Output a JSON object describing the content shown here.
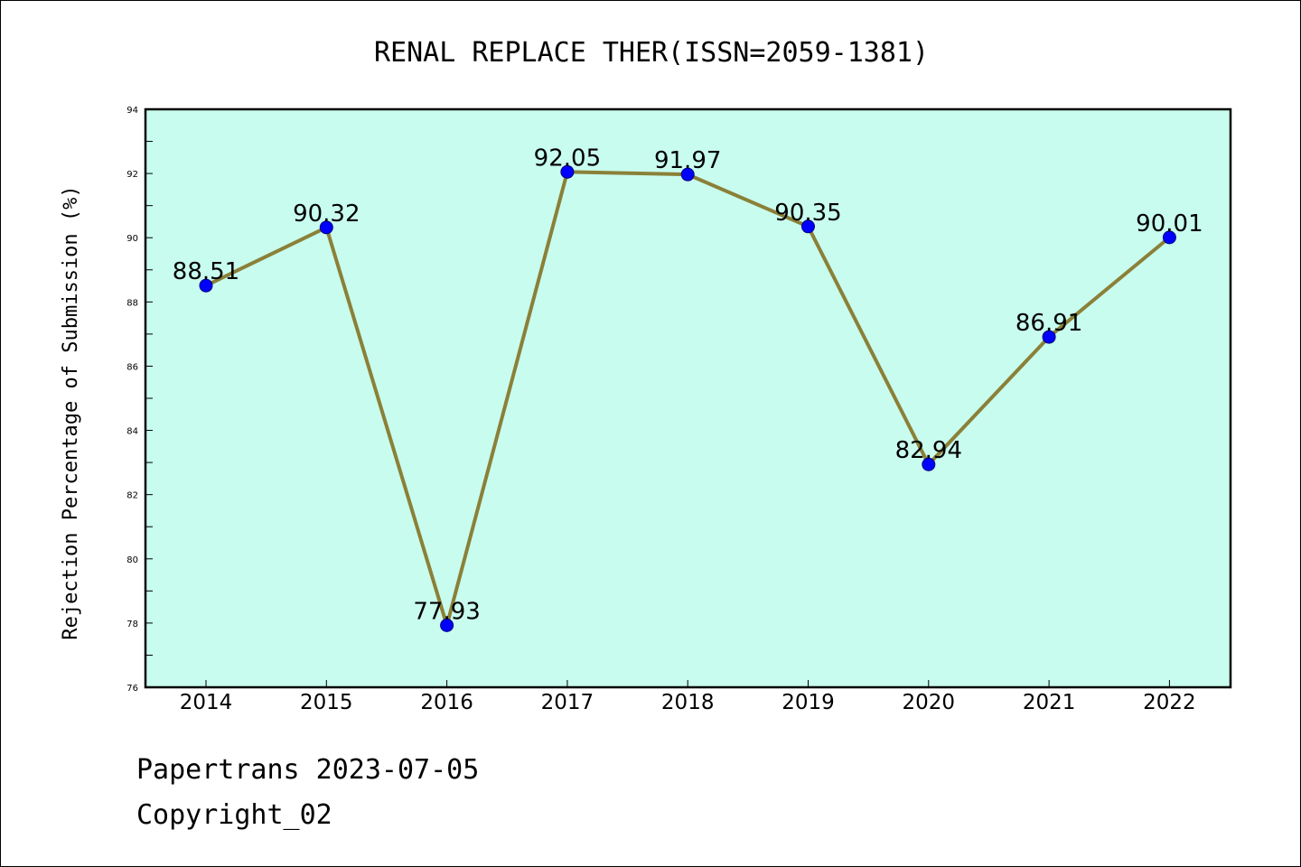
{
  "chart_data": {
    "type": "line",
    "title": "RENAL REPLACE THER(ISSN=2059-1381)",
    "xlabel": "",
    "ylabel": "Rejection Percentage of Submission (%)",
    "categories": [
      "2014",
      "2015",
      "2016",
      "2017",
      "2018",
      "2019",
      "2020",
      "2021",
      "2022"
    ],
    "series": [
      {
        "values": [
          88.51,
          90.32,
          77.93,
          92.05,
          91.97,
          90.35,
          82.94,
          86.91,
          90.01
        ],
        "data_labels": [
          "88.51",
          "90.32",
          "77.93",
          "92.05",
          "91.97",
          "90.35",
          "82.94",
          "86.91",
          "90.01"
        ]
      }
    ],
    "ylim": [
      76,
      94
    ],
    "yticks": [
      "76",
      "78",
      "80",
      "82",
      "84",
      "86",
      "88",
      "90",
      "92",
      "94"
    ],
    "grid": false,
    "legend": "none",
    "colors": {
      "plot_background": "#c8fcee",
      "line": "#8b8038",
      "marker": "#0000ff",
      "frame": "#000000"
    }
  },
  "footer": {
    "line1": "Papertrans 2023-07-05",
    "line2": "Copyright_02"
  }
}
